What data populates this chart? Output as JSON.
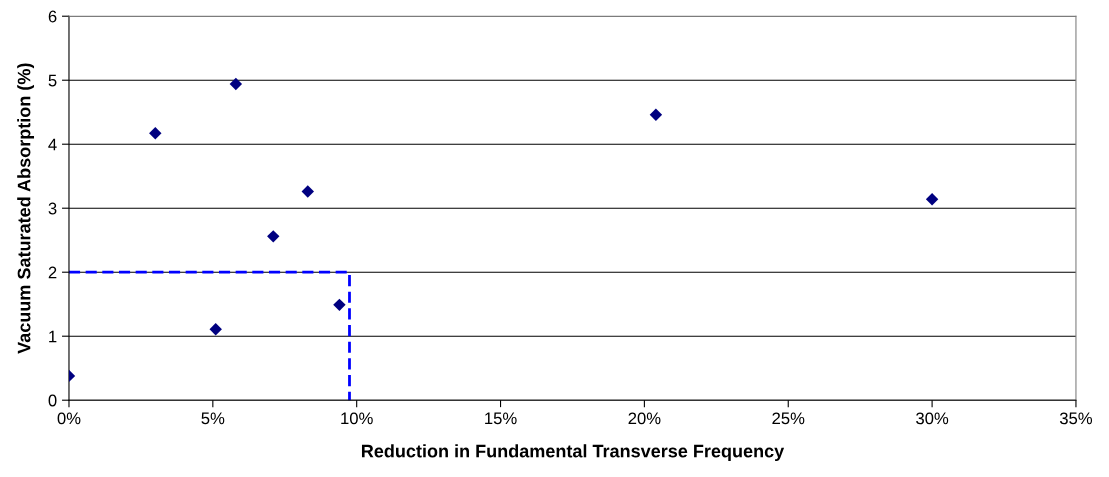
{
  "chart_data": {
    "type": "scatter",
    "xlabel": "Reduction in Fundamental Transverse Frequency",
    "ylabel": "Vacuum Saturated Absorption (%)",
    "xlim": [
      0,
      35
    ],
    "xticks": [
      {
        "value": 0,
        "label": "0%"
      },
      {
        "value": 5,
        "label": "5%"
      },
      {
        "value": 10,
        "label": "10%"
      },
      {
        "value": 15,
        "label": "15%"
      },
      {
        "value": 20,
        "label": "20%"
      },
      {
        "value": 25,
        "label": "25%"
      },
      {
        "value": 30,
        "label": "30%"
      },
      {
        "value": 35,
        "label": "35%"
      }
    ],
    "ylim": [
      0,
      6
    ],
    "yticks": [
      0,
      1,
      2,
      3,
      4,
      5,
      6
    ],
    "grid": "y",
    "series": [
      {
        "color": "#000080",
        "marker": "diamond",
        "x": [
          0,
          3.0,
          5.1,
          5.8,
          7.1,
          8.3,
          9.4,
          20.4,
          30.0
        ],
        "values": [
          0.38,
          4.17,
          1.11,
          4.94,
          2.56,
          3.26,
          1.49,
          4.46,
          3.14
        ]
      },
      {
        "type": "line",
        "color": "#0000ff",
        "marker": "none",
        "line_style": "dashed",
        "x": [
          0,
          9.75,
          9.75
        ],
        "values": [
          2,
          2,
          0
        ]
      }
    ]
  }
}
